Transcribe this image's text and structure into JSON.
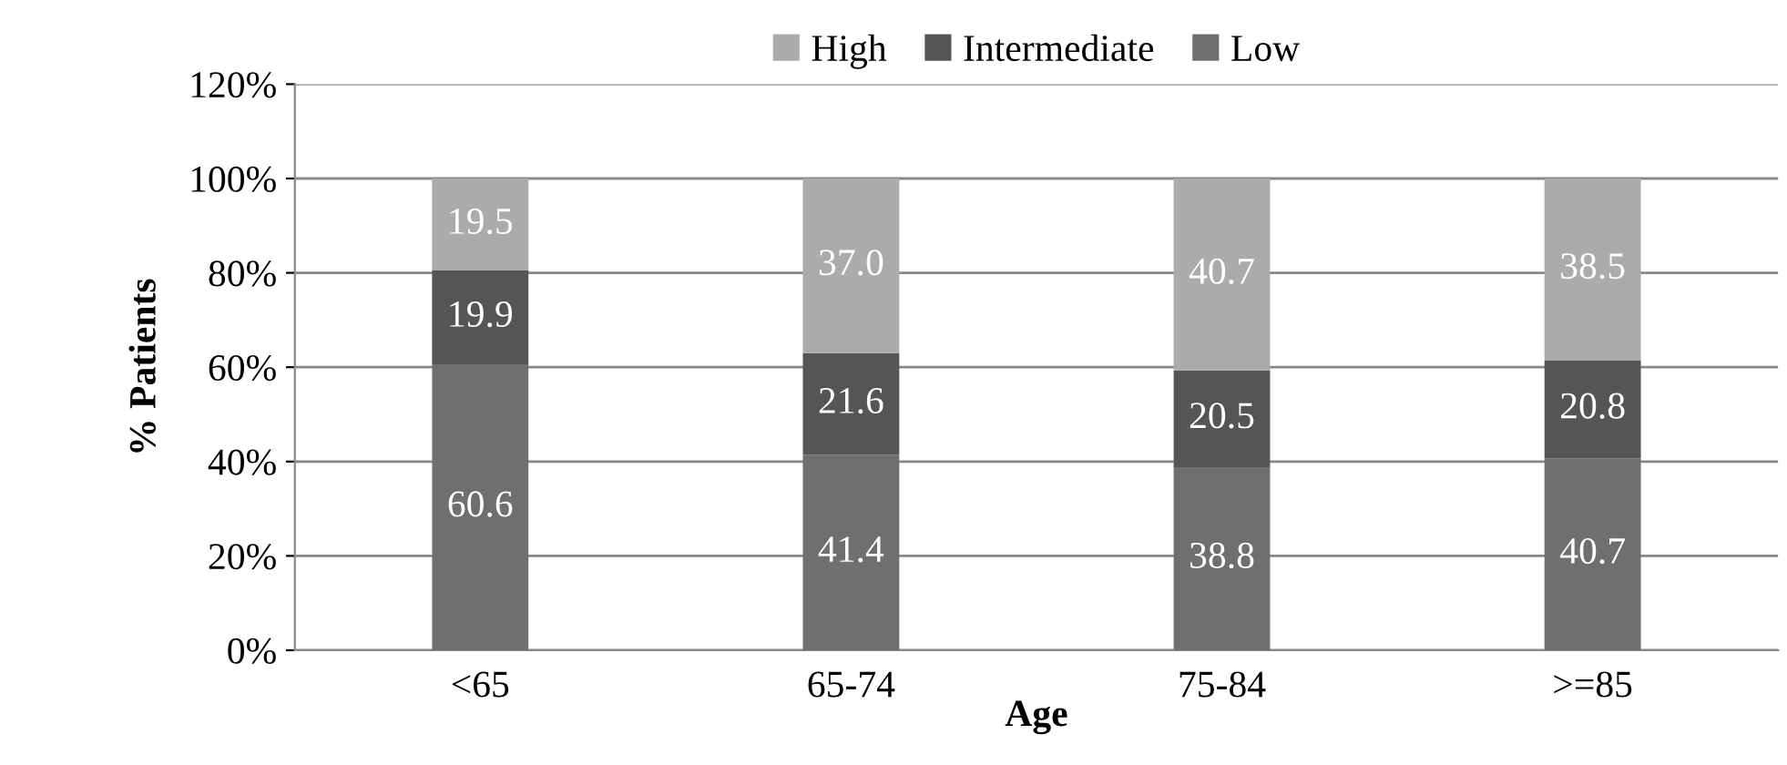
{
  "chart_data": {
    "type": "bar",
    "stacked": true,
    "xlabel": "Age",
    "ylabel": "% Patients",
    "categories": [
      "<65",
      "65-74",
      "75-84",
      ">=85"
    ],
    "series": [
      {
        "name": "Low",
        "color": "#6f6f6f",
        "values": [
          60.6,
          41.4,
          38.8,
          40.7
        ],
        "value_labels": [
          "60.6",
          "41.4",
          "38.8",
          "40.7"
        ]
      },
      {
        "name": "Intermediate",
        "color": "#555555",
        "values": [
          19.9,
          21.6,
          20.5,
          20.8
        ],
        "value_labels": [
          "19.9",
          "21.6",
          "20.5",
          "20.8"
        ]
      },
      {
        "name": "High",
        "color": "#ababab",
        "values": [
          19.5,
          37.0,
          40.7,
          38.5
        ],
        "value_labels": [
          "19.5",
          "37.0",
          "40.7",
          "38.5"
        ]
      }
    ],
    "ylim": [
      0,
      120
    ],
    "yticks": [
      {
        "value": 0,
        "label": "0%"
      },
      {
        "value": 20,
        "label": "20%"
      },
      {
        "value": 40,
        "label": "40%"
      },
      {
        "value": 60,
        "label": "60%"
      },
      {
        "value": 80,
        "label": "80%"
      },
      {
        "value": 100,
        "label": "100%"
      },
      {
        "value": 120,
        "label": "120%"
      }
    ],
    "grid": "y",
    "legend": "top"
  }
}
